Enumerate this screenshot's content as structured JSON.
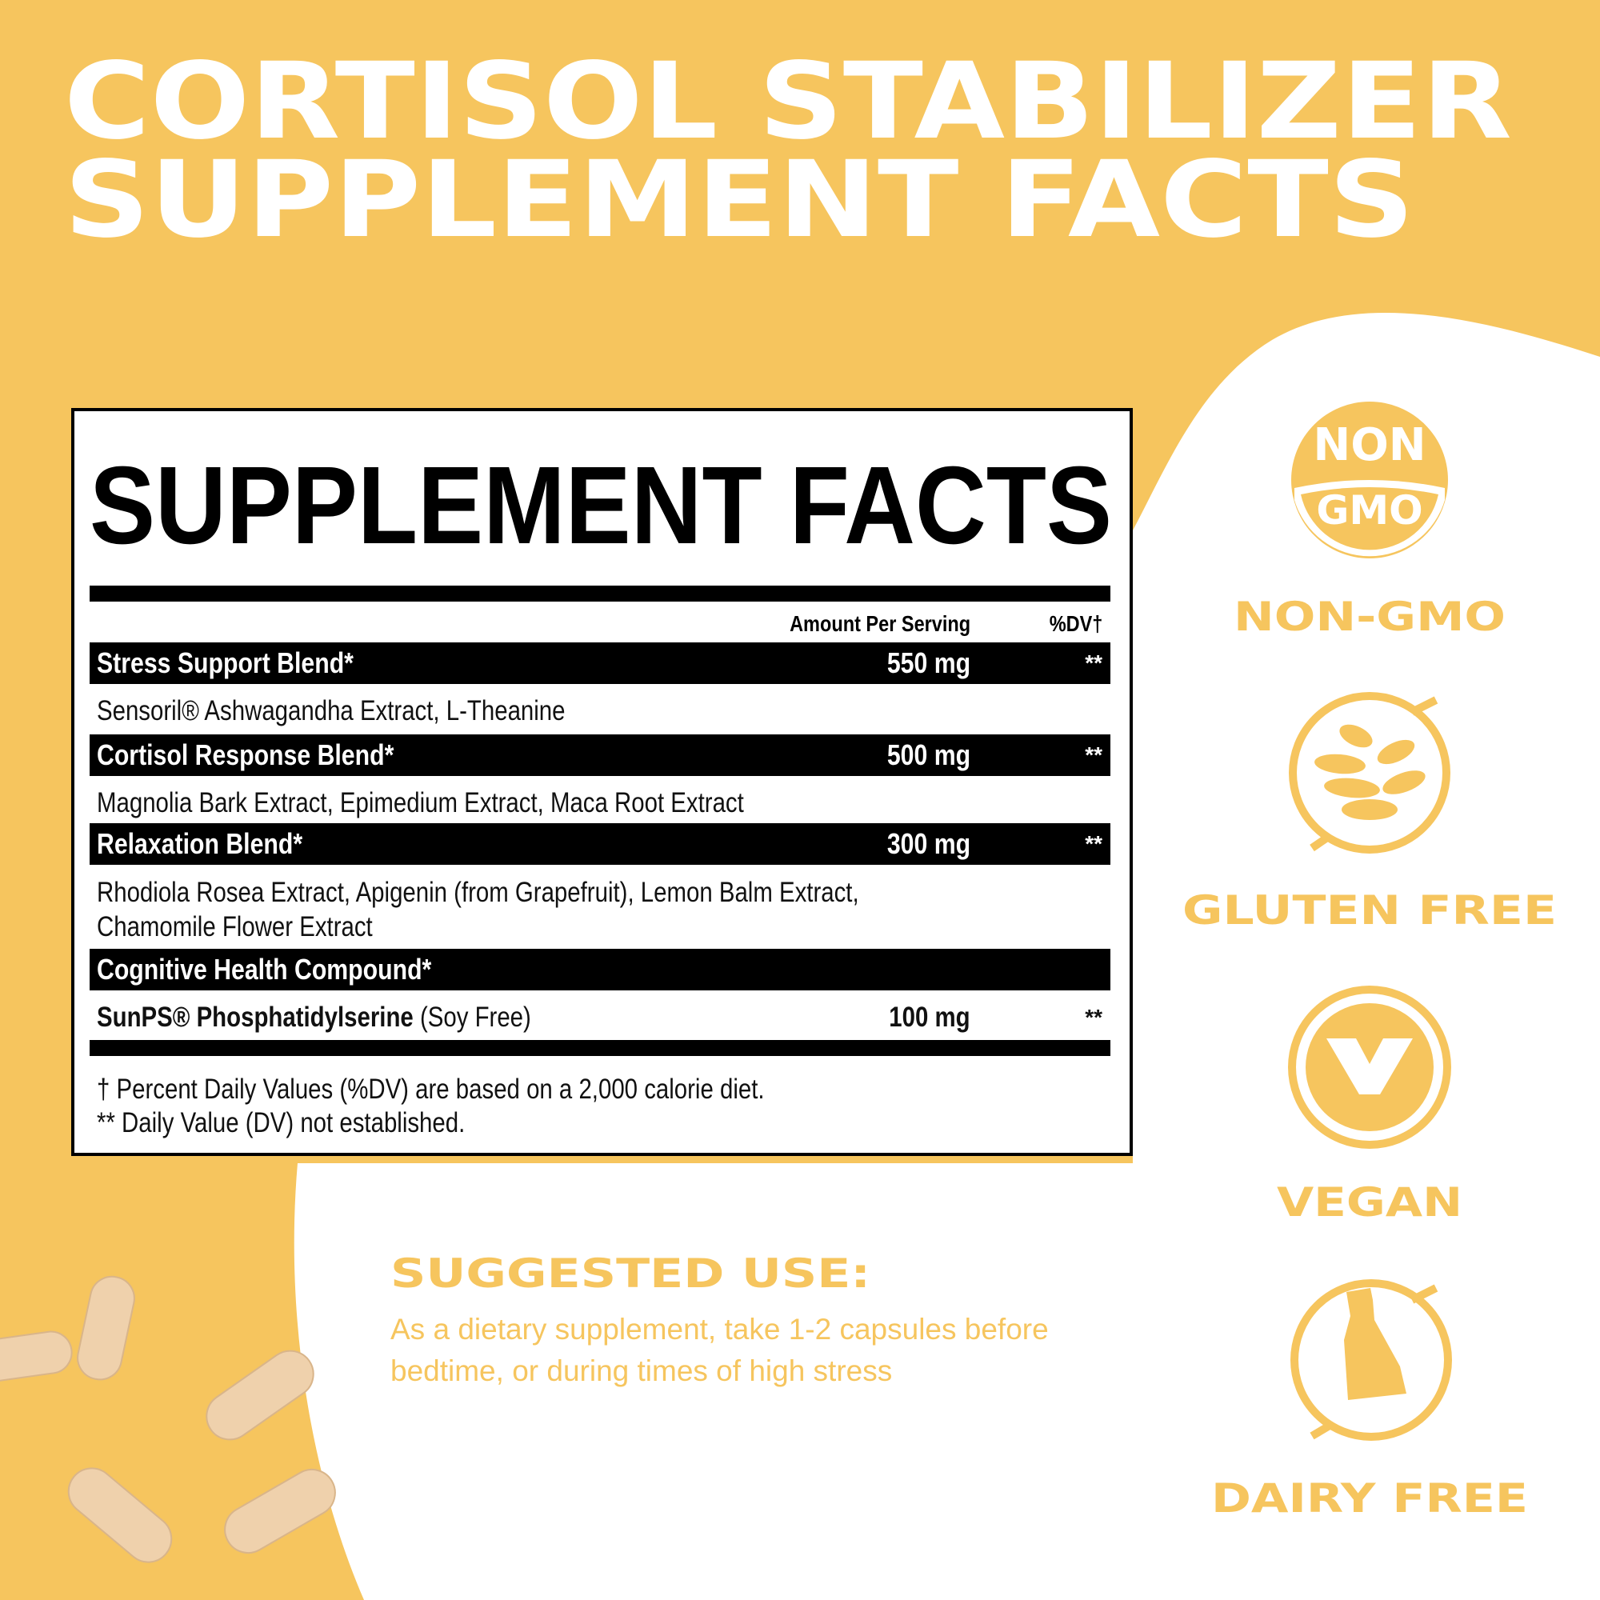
{
  "colors": {
    "brand_yellow": "#F6C55E",
    "panel": "#FFFFFF",
    "ink": "#000000",
    "capsule": "#EFD1AC"
  },
  "header": {
    "line1": "CORTISOL STABILIZER",
    "line2": "SUPPLEMENT FACTS"
  },
  "facts": {
    "title": "SUPPLEMENT FACTS",
    "col_amount": "Amount Per Serving",
    "col_dv": "%DV†",
    "rows": [
      {
        "name": "Stress Support Blend*",
        "amount": "550 mg",
        "dv": "**",
        "ingredients": [
          "Sensoril® Ashwagandha Extract, L-Theanine"
        ]
      },
      {
        "name": "Cortisol Response Blend*",
        "amount": "500 mg",
        "dv": "**",
        "ingredients": [
          "Magnolia Bark Extract, Epimedium Extract, Maca Root Extract"
        ]
      },
      {
        "name": "Relaxation Blend*",
        "amount": "300 mg",
        "dv": "**",
        "ingredients": [
          "Rhodiola Rosea Extract, Apigenin (from Grapefruit), Lemon Balm Extract,",
          "Chamomile Flower Extract"
        ]
      },
      {
        "name": "Cognitive Health Compound*",
        "item_bold": "SunPS® Phosphatidylserine",
        "item_note": " (Soy Free)",
        "amount": "100 mg",
        "dv": "**"
      }
    ],
    "footnotes": [
      "†  Percent Daily Values (%DV) are based on a 2,000 calorie diet.",
      "** Daily Value (DV) not established."
    ]
  },
  "suggested_use": {
    "heading": "SUGGESTED USE:",
    "lines": [
      "As a dietary supplement, take 1-2 capsules before",
      "bedtime, or during times of high stress"
    ]
  },
  "badges": [
    {
      "icon": "non-gmo-icon",
      "icon_text_top": "NON",
      "icon_text_bottom": "GMO",
      "label": "NON-GMO"
    },
    {
      "icon": "wheat-crossed-icon",
      "label": "GLUTEN FREE"
    },
    {
      "icon": "vegan-v-icon",
      "label": "VEGAN"
    },
    {
      "icon": "milk-bottle-crossed-icon",
      "label": "DAIRY FREE"
    }
  ]
}
